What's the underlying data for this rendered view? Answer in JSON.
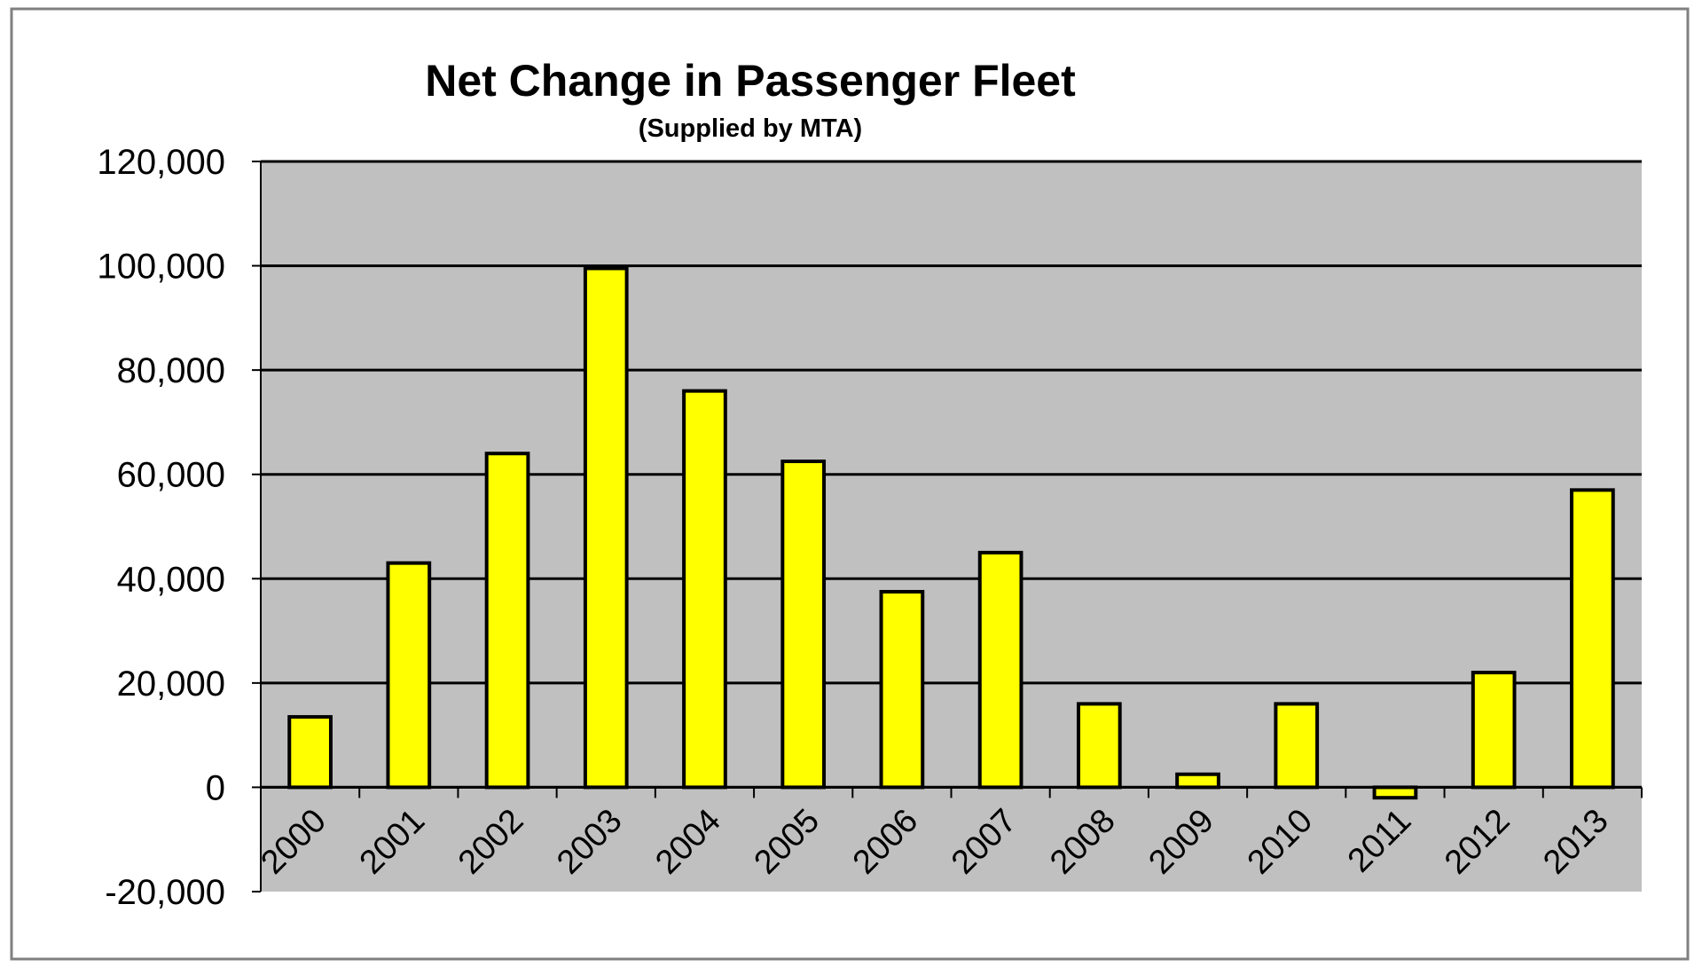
{
  "chart_data": {
    "type": "bar",
    "title": "Net Change in Passenger Fleet",
    "subtitle": "(Supplied by MTA)",
    "xlabel": "",
    "ylabel": "",
    "categories": [
      "2000",
      "2001",
      "2002",
      "2003",
      "2004",
      "2005",
      "2006",
      "2007",
      "2008",
      "2009",
      "2010",
      "2011",
      "2012",
      "2013"
    ],
    "values": [
      13500,
      43000,
      64000,
      99500,
      76000,
      62500,
      37500,
      45000,
      16000,
      2500,
      16000,
      -2000,
      22000,
      57000
    ],
    "ylim": [
      -20000,
      120000
    ],
    "yticks": [
      -20000,
      0,
      20000,
      40000,
      60000,
      80000,
      100000,
      120000
    ],
    "ytick_labels": [
      "-20,000",
      "0",
      "20,000",
      "40,000",
      "60,000",
      "80,000",
      "100,000",
      "120,000"
    ],
    "grid": true,
    "legend": "none",
    "colors": {
      "bar": "#FFFF00",
      "bar_outline": "#000000",
      "plot_bg": "#C0C0C0",
      "gridline": "#000000"
    }
  }
}
